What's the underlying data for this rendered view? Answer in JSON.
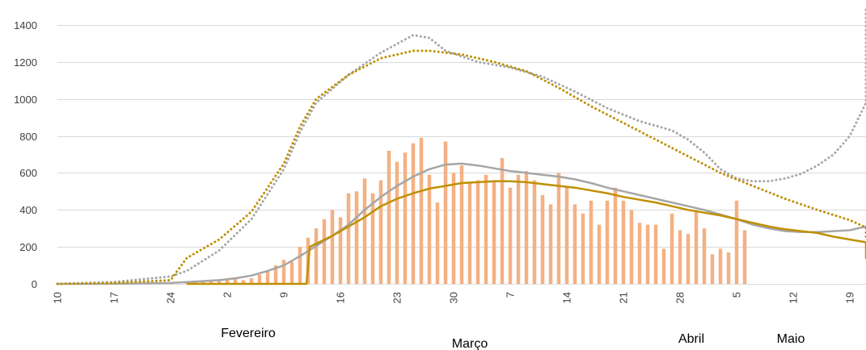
{
  "chart_data": {
    "type": "bar",
    "title": "",
    "xlabel": "",
    "ylabel": "",
    "ylim": [
      0,
      1500
    ],
    "yticks": [
      0,
      200,
      400,
      600,
      800,
      1000,
      1200,
      1400
    ],
    "grid": true,
    "legend": "none",
    "x_start_day": 10,
    "x_end_day": 110,
    "xtick_labels": [
      "10",
      "17",
      "24",
      "2",
      "9",
      "16",
      "23",
      "30",
      "7",
      "14",
      "21",
      "28",
      "5",
      "12",
      "19"
    ],
    "month_labels": [
      "Fevereiro",
      "Março",
      "Abril",
      "Maio"
    ],
    "colors": {
      "bars": "#f4b183",
      "gray": "#a6a6a6",
      "gold": "#bf9000",
      "grid": "#d9d9d9"
    },
    "series": [
      {
        "style": "bar",
        "color": "#f4b183",
        "start_day": 26,
        "values": [
          10,
          12,
          15,
          20,
          25,
          30,
          35,
          20,
          30,
          50,
          70,
          100,
          130,
          120,
          200,
          250,
          300,
          350,
          400,
          360,
          490,
          500,
          570,
          490,
          560,
          720,
          660,
          710,
          760,
          790,
          590,
          440,
          770,
          600,
          640,
          550,
          560,
          590,
          550,
          680,
          520,
          590,
          610,
          560,
          480,
          430,
          600,
          530,
          430,
          380,
          450,
          320,
          450,
          520,
          450,
          400,
          330,
          320,
          320,
          190,
          380,
          290,
          270,
          390,
          300,
          160,
          190,
          170,
          450,
          290
        ]
      },
      {
        "style": "solid",
        "color": "#a6a6a6",
        "x": [
          10,
          15,
          20,
          24,
          26,
          28,
          30,
          32,
          34,
          36,
          38,
          40,
          42,
          44,
          46,
          48,
          50,
          52,
          54,
          56,
          58,
          60,
          62,
          64,
          66,
          68,
          70,
          72,
          74,
          76,
          78,
          80,
          82,
          84,
          86,
          88,
          90,
          92,
          94,
          96,
          98,
          100,
          102,
          104,
          106,
          108,
          110
        ],
        "values": [
          0,
          0,
          2,
          5,
          10,
          15,
          20,
          30,
          45,
          70,
          100,
          150,
          205,
          260,
          320,
          400,
          470,
          530,
          580,
          620,
          645,
          650,
          640,
          625,
          610,
          600,
          590,
          580,
          565,
          545,
          520,
          500,
          480,
          460,
          440,
          420,
          400,
          375,
          350,
          320,
          300,
          285,
          280,
          280,
          285,
          290,
          310
        ]
      },
      {
        "style": "solid",
        "color": "#bf9000",
        "x": [
          26,
          40.8,
          41.2,
          44,
          46,
          48,
          50,
          52,
          54,
          56,
          58,
          60,
          62,
          64,
          66,
          68,
          70,
          72,
          74,
          76,
          78,
          80,
          82,
          84,
          86,
          88,
          90,
          92,
          94,
          96,
          98,
          100,
          102,
          104,
          106,
          108,
          110,
          112,
          114,
          116,
          118,
          120,
          122,
          124
        ],
        "values": [
          0,
          0,
          200,
          260,
          310,
          360,
          420,
          460,
          490,
          515,
          530,
          545,
          550,
          555,
          555,
          550,
          540,
          530,
          520,
          505,
          490,
          470,
          455,
          440,
          420,
          400,
          385,
          370,
          350,
          330,
          310,
          295,
          285,
          275,
          255,
          240,
          225,
          215,
          200,
          190,
          175,
          165,
          150,
          135
        ]
      },
      {
        "style": "dotted",
        "color": "#a6a6a6",
        "x": [
          10,
          17,
          24,
          26,
          30,
          34,
          38,
          40,
          42,
          46,
          50,
          54,
          56,
          58,
          62,
          66,
          70,
          74,
          78,
          82,
          86,
          88,
          90,
          92,
          94,
          96,
          98,
          100,
          102,
          104,
          106,
          108,
          110,
          112,
          114,
          116,
          118,
          120
        ],
        "values": [
          0,
          10,
          40,
          70,
          180,
          350,
          620,
          820,
          980,
          1130,
          1250,
          1345,
          1330,
          1260,
          1200,
          1170,
          1120,
          1040,
          950,
          880,
          830,
          780,
          710,
          620,
          570,
          555,
          555,
          570,
          595,
          640,
          700,
          800,
          980,
          1200,
          1500,
          1600,
          1600,
          1600
        ]
      },
      {
        "style": "dotted",
        "color": "#bf9000",
        "x": [
          10,
          17,
          24,
          26,
          28,
          30,
          34,
          38,
          40,
          42,
          46,
          50,
          54,
          56,
          60,
          64,
          68,
          72,
          76,
          80,
          84,
          88,
          92,
          96,
          100,
          104,
          108,
          112,
          116,
          120,
          124
        ],
        "values": [
          0,
          5,
          20,
          140,
          190,
          240,
          390,
          650,
          850,
          1000,
          1130,
          1220,
          1260,
          1260,
          1240,
          1200,
          1150,
          1060,
          960,
          870,
          780,
          690,
          600,
          530,
          460,
          400,
          345,
          305,
          270,
          250,
          240
        ]
      }
    ]
  }
}
